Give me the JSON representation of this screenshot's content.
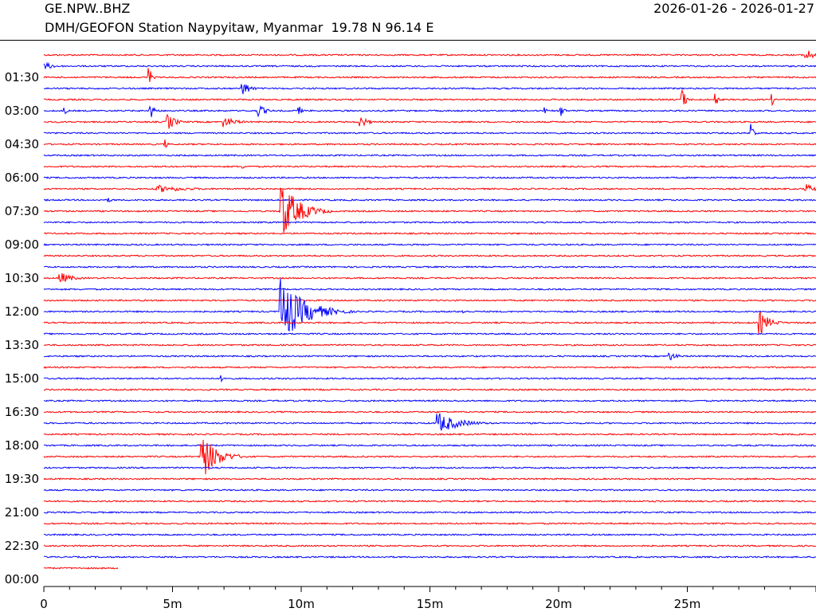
{
  "header": {
    "station_code": "GE.NPW..BHZ",
    "date_range": "2026-01-26 - 2026-01-27",
    "station_desc": "DMH/GEOFON Station Naypyitaw, Myanmar  19.78 N 96.14 E"
  },
  "chart_data": {
    "type": "line",
    "title": "GE.NPW..BHZ",
    "xlabel": "",
    "ylabel": "",
    "x_ticks": [
      "0",
      "5m",
      "10m",
      "15m",
      "20m",
      "25m"
    ],
    "x_range_minutes": [
      0,
      30
    ],
    "y_ticks": [
      "01:30",
      "03:00",
      "04:30",
      "06:00",
      "07:30",
      "09:00",
      "10:30",
      "12:00",
      "13:30",
      "15:00",
      "16:30",
      "18:00",
      "19:30",
      "21:00",
      "22:30",
      "00:00"
    ],
    "row_minutes": 30,
    "colors": [
      "#ff0000",
      "#0000ff"
    ],
    "grid": false,
    "events": [
      {
        "row": 0,
        "minute": 29.6,
        "amp": 9,
        "dur": 1.0
      },
      {
        "row": 1,
        "minute": 0.0,
        "amp": 5,
        "dur": 1.5
      },
      {
        "row": 2,
        "minute": 4.1,
        "amp": 14,
        "dur": 0.3
      },
      {
        "row": 3,
        "minute": 7.7,
        "amp": 12,
        "dur": 0.8
      },
      {
        "row": 4,
        "minute": 24.8,
        "amp": 14,
        "dur": 0.5
      },
      {
        "row": 4,
        "minute": 26.1,
        "amp": 10,
        "dur": 0.3
      },
      {
        "row": 4,
        "minute": 28.3,
        "amp": 7,
        "dur": 0.3
      },
      {
        "row": 5,
        "minute": 0.8,
        "amp": 6,
        "dur": 0.3
      },
      {
        "row": 5,
        "minute": 4.1,
        "amp": 12,
        "dur": 0.6
      },
      {
        "row": 5,
        "minute": 8.3,
        "amp": 9,
        "dur": 0.9
      },
      {
        "row": 5,
        "minute": 9.9,
        "amp": 8,
        "dur": 0.3
      },
      {
        "row": 5,
        "minute": 19.4,
        "amp": 8,
        "dur": 0.3
      },
      {
        "row": 5,
        "minute": 20.1,
        "amp": 9,
        "dur": 0.4
      },
      {
        "row": 6,
        "minute": 4.8,
        "amp": 12,
        "dur": 0.9
      },
      {
        "row": 6,
        "minute": 7.0,
        "amp": 7,
        "dur": 1.5
      },
      {
        "row": 6,
        "minute": 12.3,
        "amp": 9,
        "dur": 0.8
      },
      {
        "row": 7,
        "minute": 27.5,
        "amp": 15,
        "dur": 0.3
      },
      {
        "row": 8,
        "minute": 4.7,
        "amp": 7,
        "dur": 0.3
      },
      {
        "row": 10,
        "minute": 7.7,
        "amp": 3,
        "dur": 0.5
      },
      {
        "row": 12,
        "minute": 4.4,
        "amp": 5,
        "dur": 3.5
      },
      {
        "row": 12,
        "minute": 29.6,
        "amp": 7,
        "dur": 1.0
      },
      {
        "row": 13,
        "minute": 2.5,
        "amp": 3,
        "dur": 0.8
      },
      {
        "row": 14,
        "minute": 9.2,
        "amp": 40,
        "dur": 2.0
      },
      {
        "row": 20,
        "minute": 0.6,
        "amp": 8,
        "dur": 1.5
      },
      {
        "row": 23,
        "minute": 9.2,
        "amp": 42,
        "dur": 2.8
      },
      {
        "row": 23,
        "minute": 16.3,
        "amp": 3,
        "dur": 0.5
      },
      {
        "row": 24,
        "minute": 27.8,
        "amp": 16,
        "dur": 1.2
      },
      {
        "row": 27,
        "minute": 24.3,
        "amp": 6,
        "dur": 1.0
      },
      {
        "row": 29,
        "minute": 6.9,
        "amp": 4,
        "dur": 0.5
      },
      {
        "row": 33,
        "minute": 15.3,
        "amp": 14,
        "dur": 2.5
      },
      {
        "row": 36,
        "minute": 6.1,
        "amp": 32,
        "dur": 1.8
      }
    ]
  }
}
